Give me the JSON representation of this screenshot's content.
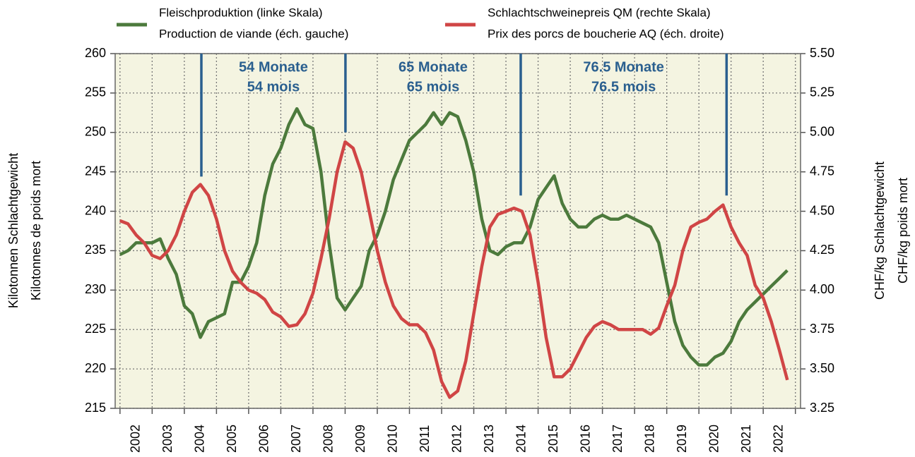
{
  "chart_data": {
    "type": "line",
    "ylabel": [
      "Kilotonnen Schlachtgewicht",
      "Kilotonnes de poids mort"
    ],
    "y2label": [
      "CHF/kg Schlachtgewicht",
      "CHF/kg poids mort"
    ],
    "categories": [
      "2002",
      "2003",
      "2004",
      "2005",
      "2006",
      "2007",
      "2008",
      "2009",
      "2010",
      "2011",
      "2012",
      "2013",
      "2014",
      "2015",
      "2016",
      "2017",
      "2018",
      "2019",
      "2020",
      "2021",
      "2022"
    ],
    "xlim": [
      2001.85,
      2023.16
    ],
    "xticks": [
      2002,
      2003,
      2004,
      2005,
      2006,
      2007,
      2008,
      2009,
      2010,
      2011,
      2012,
      2013,
      2014,
      2015,
      2016,
      2017,
      2018,
      2019,
      2020,
      2021,
      2022,
      2023
    ],
    "ylim": [
      215,
      260
    ],
    "yticks": [
      215,
      220,
      225,
      230,
      235,
      240,
      245,
      250,
      255,
      260
    ],
    "y2lim": [
      3.25,
      5.5
    ],
    "y2ticks": [
      3.25,
      {
        "value": 3.5,
        "label": "3.50"
      },
      3.75,
      {
        "value": 4,
        "label": "4.00"
      },
      4.25,
      {
        "value": 4.5,
        "label": "4.50"
      },
      4.75,
      {
        "value": 5,
        "label": "5.00"
      },
      5.25,
      {
        "value": 5.5,
        "label": "5.50"
      }
    ],
    "grid": true,
    "x": [
      2002,
      2002.25,
      2002.5,
      2002.75,
      2003,
      2003.25,
      2003.5,
      2003.75,
      2004,
      2004.25,
      2004.5,
      2004.75,
      2005,
      2005.25,
      2005.5,
      2005.75,
      2006,
      2006.25,
      2006.5,
      2006.75,
      2007,
      2007.25,
      2007.5,
      2007.75,
      2008,
      2008.25,
      2008.5,
      2008.75,
      2009,
      2009.25,
      2009.5,
      2009.75,
      2010,
      2010.25,
      2010.5,
      2010.75,
      2011,
      2011.25,
      2011.5,
      2011.75,
      2012,
      2012.25,
      2012.5,
      2012.75,
      2013,
      2013.25,
      2013.5,
      2013.75,
      2014,
      2014.25,
      2014.5,
      2014.75,
      2015,
      2015.25,
      2015.5,
      2015.75,
      2016,
      2016.25,
      2016.5,
      2016.75,
      2017,
      2017.25,
      2017.5,
      2017.75,
      2018,
      2018.25,
      2018.5,
      2018.75,
      2019,
      2019.25,
      2019.5,
      2019.75,
      2020,
      2020.25,
      2020.5,
      2020.75,
      2021,
      2021.25,
      2021.5,
      2021.75,
      2022,
      2022.25,
      2022.5,
      2022.75
    ],
    "series": [
      {
        "name": [
          "Fleischproduktion (linke Skala)",
          "Production de viande (éch. gauche)"
        ],
        "color": "#4c7a3c",
        "axis": "y",
        "values": [
          234.5,
          235,
          236,
          236,
          236,
          236.5,
          234,
          232,
          228,
          227,
          224,
          226,
          226.5,
          227,
          231,
          231,
          233,
          236,
          242,
          246,
          248,
          251,
          253,
          251,
          250.5,
          245,
          236,
          229,
          227.5,
          229,
          230.5,
          235,
          237,
          240,
          244,
          246.5,
          249,
          250,
          251,
          252.5,
          251,
          252.5,
          252,
          249,
          245,
          239,
          235,
          234.5,
          235.5,
          236,
          236,
          238,
          241.5,
          243,
          244.5,
          241,
          239,
          238,
          238,
          239,
          239.5,
          239,
          239,
          239.5,
          239,
          238.5,
          238,
          236,
          231,
          226,
          223,
          221.5,
          220.5,
          220.5,
          221.5,
          222,
          223.5,
          226,
          227.5,
          228.5,
          229.5,
          230.5,
          231.5,
          232.5
        ]
      },
      {
        "name": [
          "Schlachtschweinepreis QM (rechte Skala)",
          "Prix des porcs de boucherie AQ (éch. droite)"
        ],
        "color": "#d04545",
        "axis": "y2",
        "values": [
          4.44,
          4.42,
          4.35,
          4.3,
          4.22,
          4.2,
          4.25,
          4.35,
          4.5,
          4.62,
          4.67,
          4.6,
          4.45,
          4.25,
          4.12,
          4.05,
          4,
          3.98,
          3.94,
          3.86,
          3.83,
          3.77,
          3.78,
          3.85,
          3.98,
          4.2,
          4.45,
          4.75,
          4.94,
          4.9,
          4.75,
          4.5,
          4.25,
          4.05,
          3.9,
          3.82,
          3.78,
          3.78,
          3.73,
          3.62,
          3.42,
          3.32,
          3.36,
          3.55,
          3.85,
          4.15,
          4.4,
          4.48,
          4.5,
          4.52,
          4.5,
          4.35,
          4.05,
          3.7,
          3.45,
          3.45,
          3.5,
          3.6,
          3.7,
          3.77,
          3.8,
          3.78,
          3.75,
          3.75,
          3.75,
          3.75,
          3.72,
          3.76,
          3.9,
          4.03,
          4.25,
          4.4,
          4.43,
          4.45,
          4.5,
          4.54,
          4.4,
          4.3,
          4.22,
          4.03,
          3.95,
          3.8,
          3.62,
          3.43
        ]
      }
    ],
    "annotations": {
      "vlines": [
        {
          "x": 2004.53,
          "y": 4.72
        },
        {
          "x": 2009.01,
          "y": 5.0
        },
        {
          "x": 2014.46,
          "y": 4.6
        },
        {
          "x": 2020.86,
          "y": 4.6
        }
      ],
      "color": "#2a5f8f",
      "labels": [
        [
          "54 Monate",
          "54 mois"
        ],
        [
          "65 Monate",
          "65 mois"
        ],
        [
          "76.5 Monate",
          "76.5 mois"
        ]
      ]
    }
  }
}
